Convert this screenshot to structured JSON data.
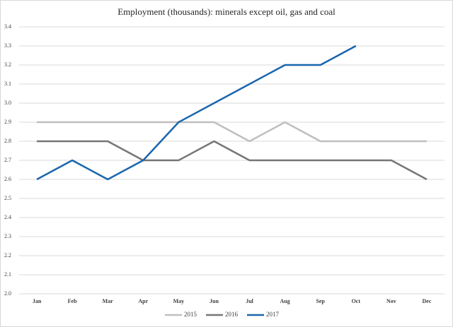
{
  "chart_data": {
    "type": "line",
    "title": "Employment (thousands): minerals except oil, gas and coal",
    "categories": [
      "Jan",
      "Feb",
      "Mar",
      "Apr",
      "May",
      "Jun",
      "Jul",
      "Aug",
      "Sep",
      "Oct",
      "Nov",
      "Dec"
    ],
    "series": [
      {
        "name": "2015",
        "color": "#bfbfbf",
        "values": [
          2.9,
          2.9,
          2.9,
          2.9,
          2.9,
          2.9,
          2.8,
          2.9,
          2.8,
          2.8,
          2.8,
          2.8
        ]
      },
      {
        "name": "2016",
        "color": "#767676",
        "values": [
          2.8,
          2.8,
          2.8,
          2.7,
          2.7,
          2.8,
          2.7,
          2.7,
          2.7,
          2.7,
          2.7,
          2.6
        ]
      },
      {
        "name": "2017",
        "color": "#1a66ae",
        "values": [
          2.6,
          2.7,
          2.6,
          2.7,
          2.9,
          3.0,
          3.1,
          3.2,
          3.2,
          3.3,
          null,
          null
        ]
      }
    ],
    "ylim": [
      2.0,
      3.4
    ],
    "yticks": [
      {
        "value": 2.0,
        "label": "2.0"
      },
      2.1,
      2.2,
      2.3,
      2.4,
      2.5,
      2.6,
      2.7,
      2.8,
      2.9,
      {
        "value": 3.0,
        "label": "3.0"
      },
      3.1,
      3.2,
      3.3,
      3.4
    ],
    "grid": true,
    "legend": "bottom"
  }
}
